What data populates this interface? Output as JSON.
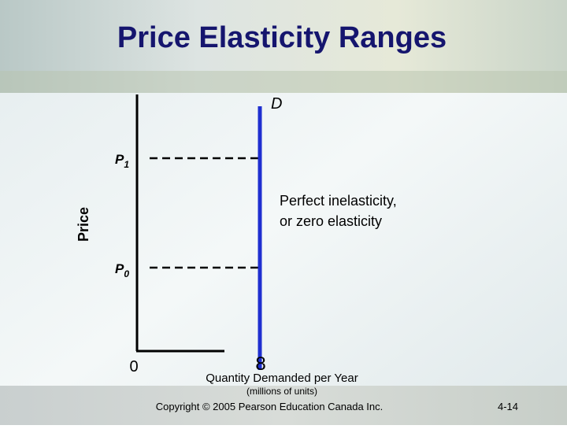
{
  "title": "Price Elasticity Ranges",
  "diagram": {
    "curve_label": "D",
    "y_axis_label": "Price",
    "price_labels": [
      {
        "letter": "P",
        "subscript": "1"
      },
      {
        "letter": "P",
        "subscript": "0"
      }
    ],
    "origin_label": "0",
    "quantity_label": "8",
    "annotation": [
      "Perfect inelasticity,",
      "or zero elasticity"
    ],
    "x_axis_label": "Quantity Demanded per Year",
    "x_axis_unit": "(millions of units)"
  },
  "footer": {
    "copyright": "Copyright © 2005 Pearson Education Canada Inc.",
    "page": "4-14"
  }
}
